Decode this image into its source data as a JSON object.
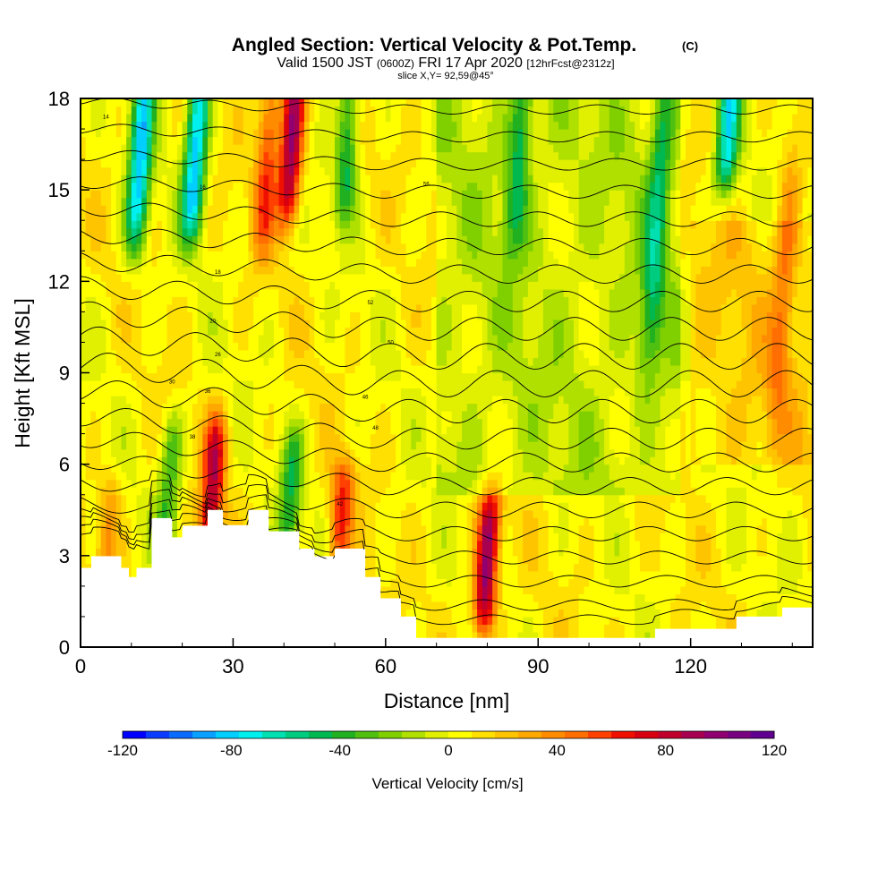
{
  "header": {
    "title": "Angled Section: Vertical Velocity & Pot.Temp.",
    "title_unit": "(C)",
    "line2_a": "Valid 1500 JST",
    "line2_b": "(0600Z)",
    "line2_c": "FRI 17 Apr 2020",
    "line2_d": "[12hrFcst@2312z]",
    "line3": "slice X,Y= 92,59@45°"
  },
  "chart_data": {
    "type": "heatmap",
    "title": "Angled Section: Vertical Velocity & Pot.Temp.",
    "xlabel": "Distance [nm]",
    "ylabel": "Height [Kft MSL]",
    "xlim": [
      0,
      144
    ],
    "ylim": [
      0,
      18
    ],
    "x_ticks": [
      0,
      30,
      60,
      90,
      120
    ],
    "y_ticks": [
      0,
      3,
      6,
      9,
      12,
      15,
      18
    ],
    "grid": false,
    "colorbar": {
      "label": "Vertical Velocity [cm/s]",
      "range": [
        -120,
        120
      ],
      "tick_labels": [
        "-120",
        "-80",
        "-40",
        "0",
        "40",
        "80",
        "120"
      ],
      "colors": [
        "#0000ff",
        "#0a3cff",
        "#0a6bff",
        "#0aa0ff",
        "#00cfff",
        "#00f0f0",
        "#00e0b0",
        "#00cc80",
        "#00b850",
        "#20b020",
        "#50c010",
        "#80d000",
        "#b0e000",
        "#e0f000",
        "#ffff00",
        "#ffe000",
        "#ffc400",
        "#ffa800",
        "#ff8c00",
        "#ff6e00",
        "#ff4000",
        "#f01000",
        "#d80010",
        "#c0002a",
        "#a80050",
        "#900070",
        "#780080",
        "#600090"
      ]
    },
    "updraft_axes": [
      {
        "x": 5,
        "strength": 30,
        "zmin": 2.5,
        "zmax": 4.5
      },
      {
        "x": 25.5,
        "strength": 75,
        "zmin": 3.8,
        "zmax": 6.5
      },
      {
        "x": 36,
        "strength": 50,
        "zmin": 14,
        "zmax": 18
      },
      {
        "x": 41,
        "strength": 90,
        "zmin": 15,
        "zmax": 18
      },
      {
        "x": 51,
        "strength": 55,
        "zmin": 3.5,
        "zmax": 5
      },
      {
        "x": 79.5,
        "strength": 95,
        "zmin": 1.5,
        "zmax": 4
      },
      {
        "x": 137,
        "strength": 30,
        "zmin": 8,
        "zmax": 16
      }
    ],
    "downdraft_axes": [
      {
        "x": 11,
        "strength": -85,
        "zmin": 14,
        "zmax": 18
      },
      {
        "x": 22,
        "strength": -90,
        "zmin": 14.5,
        "zmax": 18
      },
      {
        "x": 17,
        "strength": -40,
        "zmin": 4,
        "zmax": 6.5
      },
      {
        "x": 41,
        "strength": -45,
        "zmin": 4,
        "zmax": 6
      },
      {
        "x": 52,
        "strength": -50,
        "zmin": 15,
        "zmax": 18
      },
      {
        "x": 85.5,
        "strength": -45,
        "zmin": 14,
        "zmax": 18
      },
      {
        "x": 112,
        "strength": -45,
        "zmin": 10,
        "zmax": 18
      },
      {
        "x": 127,
        "strength": -75,
        "zmin": 16,
        "zmax": 18
      }
    ],
    "terrain": {
      "x": [
        0,
        2.5,
        2.5,
        8,
        8,
        9.5,
        9.5,
        11,
        11,
        14,
        14,
        18,
        18,
        20,
        20,
        25,
        25,
        28,
        28,
        33,
        33,
        37,
        37,
        43,
        43,
        46,
        46,
        50,
        50,
        56,
        56,
        59,
        59,
        63,
        63,
        66,
        66,
        113,
        113,
        129,
        129,
        138,
        138,
        144
      ],
      "height": [
        2.6,
        2.6,
        2.9,
        2.9,
        2.6,
        2.6,
        2.3,
        2.3,
        2.6,
        2.6,
        4.2,
        4.2,
        3.6,
        3.6,
        3.9,
        3.9,
        4.5,
        4.5,
        4.0,
        4.0,
        4.5,
        4.5,
        3.8,
        3.8,
        3.2,
        3.2,
        2.9,
        2.9,
        3.2,
        3.2,
        2.3,
        2.3,
        1.6,
        1.6,
        1.0,
        1.0,
        0.3,
        0.3,
        0.6,
        0.6,
        1.0,
        1.0,
        1.3,
        1.3
      ]
    },
    "theta_contours": {
      "levels_C": [
        16,
        18,
        20,
        22,
        24,
        26,
        28,
        30,
        32,
        34,
        36,
        38,
        40,
        42,
        44,
        46,
        48,
        50,
        52,
        54,
        56,
        58,
        60
      ],
      "labels": [
        "14",
        "16",
        "18",
        "20",
        "26",
        "30",
        "36",
        "38",
        "40",
        "42",
        "46",
        "48",
        "50",
        "52",
        "56"
      ]
    }
  },
  "colors": {
    "background": "#ffffff",
    "terrain_fill": "#ffffff",
    "contour_line": "#000000"
  }
}
